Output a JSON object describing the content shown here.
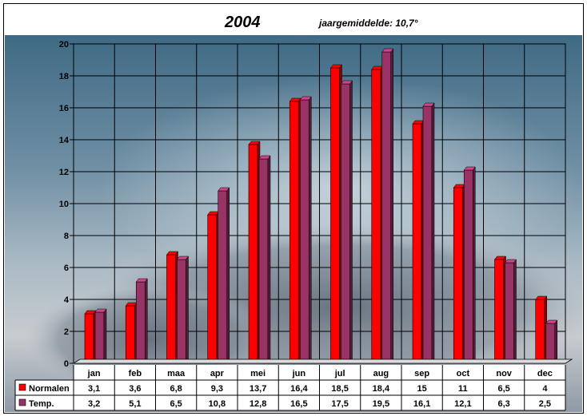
{
  "chart_data": {
    "type": "bar",
    "title": "2004",
    "subtitle": "jaargemiddelde: 10,7°",
    "categories": [
      "jan",
      "feb",
      "maa",
      "apr",
      "mei",
      "jun",
      "jul",
      "aug",
      "sep",
      "oct",
      "nov",
      "dec"
    ],
    "series": [
      {
        "name": "Normalen",
        "color": "#ff0000",
        "values": [
          3.1,
          3.6,
          6.8,
          9.3,
          13.7,
          16.4,
          18.5,
          18.4,
          15,
          11,
          6.5,
          4
        ],
        "labels": [
          "3,1",
          "3,6",
          "6,8",
          "9,3",
          "13,7",
          "16,4",
          "18,5",
          "18,4",
          "15",
          "11",
          "6,5",
          "4"
        ]
      },
      {
        "name": "Temp.",
        "color": "#993366",
        "values": [
          3.2,
          5.1,
          6.5,
          10.8,
          12.8,
          16.5,
          17.5,
          19.5,
          16.1,
          12.1,
          6.3,
          2.5
        ],
        "labels": [
          "3,2",
          "5,1",
          "6,5",
          "10,8",
          "12,8",
          "16,5",
          "17,5",
          "19,5",
          "16,1",
          "12,1",
          "6,3",
          "2,5"
        ]
      }
    ],
    "ylim": [
      0,
      20
    ],
    "yticks": [
      "0",
      "2",
      "4",
      "6",
      "8",
      "10",
      "12",
      "14",
      "16",
      "18",
      "20"
    ],
    "grid": true,
    "legend": "data-table"
  }
}
